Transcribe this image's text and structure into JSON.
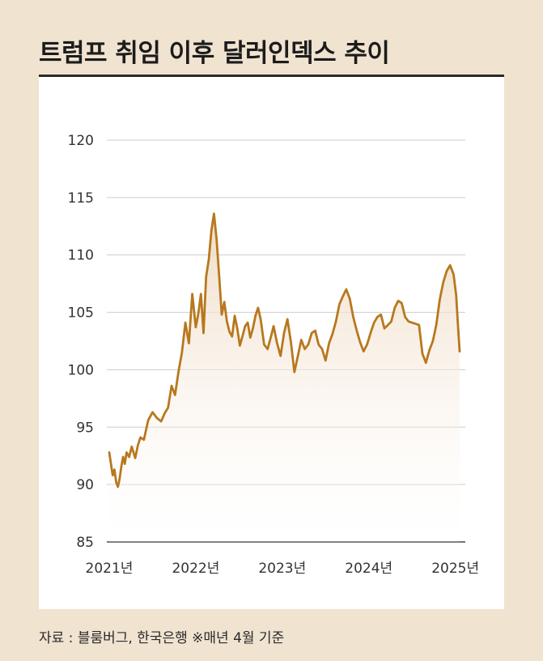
{
  "title": "트럼프 취임 이후 달러인덱스 추이",
  "source": "자료 : 블룸버그, 한국은행 ※매년 4월 기준",
  "colors": {
    "background": "#f0e3d0",
    "panel": "#ffffff",
    "line": "#b7781e",
    "grid": "#cccccc"
  },
  "chart_data": {
    "type": "area",
    "title": "트럼프 취임 이후 달러인덱스 추이",
    "xlabel": "",
    "ylabel": "",
    "ylim": [
      85,
      120
    ],
    "yticks": [
      85,
      90,
      95,
      100,
      105,
      110,
      115,
      120
    ],
    "xticks": [
      "2021년",
      "2022년",
      "2023년",
      "2024년",
      "2025년"
    ],
    "xlim": [
      2021.0,
      2025.05
    ],
    "grid": true,
    "series": [
      {
        "name": "",
        "x": [
          2021.0,
          2021.02,
          2021.04,
          2021.06,
          2021.08,
          2021.1,
          2021.12,
          2021.14,
          2021.16,
          2021.18,
          2021.2,
          2021.23,
          2021.26,
          2021.3,
          2021.33,
          2021.36,
          2021.4,
          2021.45,
          2021.5,
          2021.55,
          2021.6,
          2021.64,
          2021.68,
          2021.72,
          2021.76,
          2021.8,
          2021.84,
          2021.88,
          2021.92,
          2021.96,
          2022.0,
          2022.03,
          2022.06,
          2022.09,
          2022.12,
          2022.15,
          2022.18,
          2022.21,
          2022.24,
          2022.27,
          2022.3,
          2022.33,
          2022.36,
          2022.39,
          2022.42,
          2022.45,
          2022.48,
          2022.51,
          2022.54,
          2022.57,
          2022.6,
          2022.63,
          2022.66,
          2022.69,
          2022.72,
          2022.75,
          2022.79,
          2022.83,
          2022.87,
          2022.9,
          2022.94,
          2022.98,
          2023.02,
          2023.06,
          2023.1,
          2023.14,
          2023.18,
          2023.22,
          2023.26,
          2023.3,
          2023.34,
          2023.38,
          2023.42,
          2023.46,
          2023.5,
          2023.54,
          2023.58,
          2023.62,
          2023.66,
          2023.7,
          2023.74,
          2023.78,
          2023.82,
          2023.86,
          2023.9,
          2023.94,
          2023.98,
          2024.02,
          2024.06,
          2024.1,
          2024.14,
          2024.18,
          2024.22,
          2024.26,
          2024.3,
          2024.34,
          2024.38,
          2024.42,
          2024.46,
          2024.5,
          2024.54,
          2024.58,
          2024.62,
          2024.66,
          2024.7,
          2024.74,
          2024.78,
          2024.82,
          2024.86,
          2024.9,
          2024.94,
          2024.98,
          2025.01,
          2025.03,
          2025.05
        ],
        "values": [
          92.8,
          91.8,
          90.8,
          91.3,
          90.2,
          89.8,
          90.5,
          91.6,
          92.4,
          91.8,
          92.8,
          92.4,
          93.3,
          92.3,
          93.4,
          94.1,
          93.9,
          95.6,
          96.3,
          95.8,
          95.5,
          96.2,
          96.7,
          98.6,
          97.8,
          99.8,
          101.5,
          104.1,
          102.3,
          106.6,
          103.7,
          104.9,
          106.6,
          103.2,
          108.1,
          109.6,
          112.1,
          113.6,
          111.4,
          108.2,
          104.8,
          105.9,
          104.2,
          103.3,
          102.9,
          104.7,
          103.6,
          102.1,
          102.9,
          103.8,
          104.1,
          102.8,
          103.6,
          104.7,
          105.4,
          104.4,
          102.2,
          101.8,
          102.9,
          103.8,
          102.3,
          101.2,
          103.2,
          104.4,
          102.4,
          99.8,
          101.2,
          102.6,
          101.8,
          102.2,
          103.2,
          103.4,
          102.2,
          101.8,
          100.8,
          102.3,
          103.1,
          104.2,
          105.7,
          106.4,
          107.0,
          106.2,
          104.6,
          103.4,
          102.4,
          101.6,
          102.2,
          103.2,
          104.1,
          104.6,
          104.8,
          103.6,
          103.9,
          104.2,
          105.4,
          106.0,
          105.8,
          104.6,
          104.2,
          104.1,
          104.0,
          103.9,
          101.4,
          100.6,
          101.7,
          102.5,
          103.9,
          106.1,
          107.6,
          108.6,
          109.1,
          108.3,
          106.5,
          103.9,
          101.6
        ]
      }
    ]
  }
}
